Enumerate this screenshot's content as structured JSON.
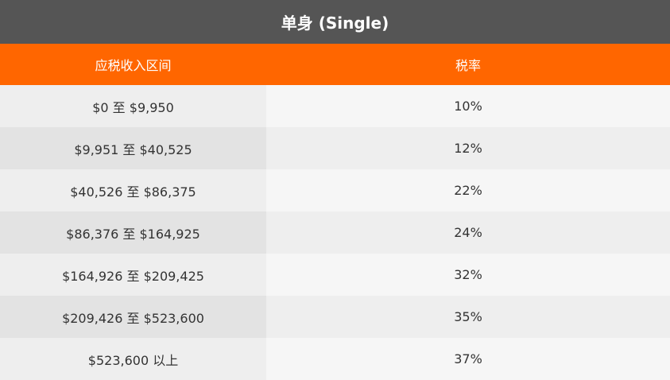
{
  "table": {
    "title": "单身 (Single)",
    "headers": [
      "应税收入区间",
      "税率"
    ],
    "rows": [
      {
        "range": "$0 至 $9,950",
        "rate": "10%"
      },
      {
        "range": "$9,951 至 $40,525",
        "rate": "12%"
      },
      {
        "range": "$40,526 至 $86,375",
        "rate": "22%"
      },
      {
        "range": "$86,376 至 $164,925",
        "rate": "24%"
      },
      {
        "range": "$164,926 至 $209,425",
        "rate": "32%"
      },
      {
        "range": "$209,426 至 $523,600",
        "rate": "35%"
      },
      {
        "range": "$523,600 以上",
        "rate": "37%"
      }
    ]
  },
  "colors": {
    "title_bg": "#555555",
    "header_bg": "#ff6600",
    "text": "#333333"
  }
}
